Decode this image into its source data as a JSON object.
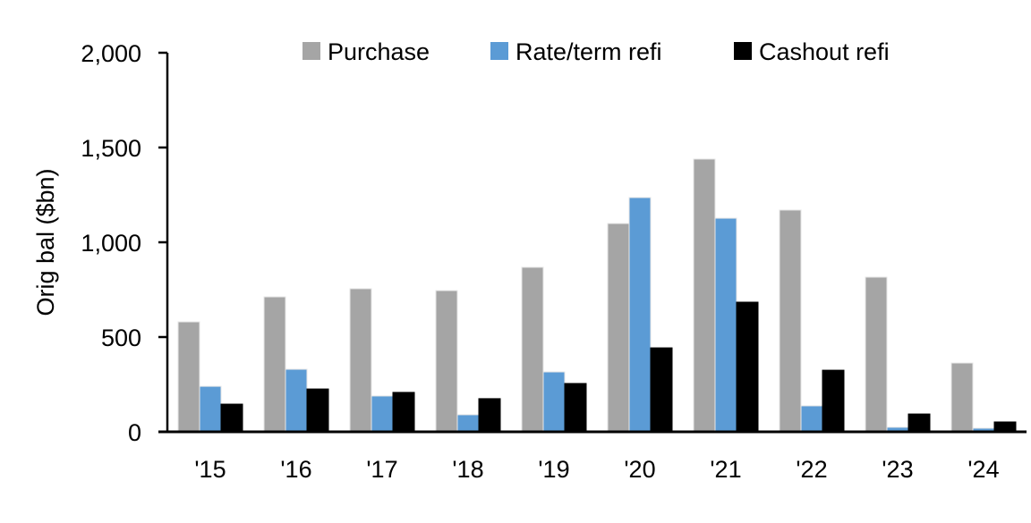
{
  "chart_data": {
    "type": "bar",
    "title": "",
    "xlabel": "",
    "ylabel": "Orig bal ($bn)",
    "ylim": [
      0,
      2000
    ],
    "yticks": [
      0,
      500,
      1000,
      1500,
      2000
    ],
    "ytick_labels": [
      "0",
      "500",
      "1,000",
      "1,500",
      "2,000"
    ],
    "grid": false,
    "legend_position": "top",
    "categories": [
      "'15",
      "'16",
      "'17",
      "'18",
      "'19",
      "'20",
      "'21",
      "'22",
      "'23",
      "'24"
    ],
    "series": [
      {
        "name": "Purchase",
        "color": "#a5a5a5",
        "values": [
          580,
          712,
          755,
          745,
          868,
          1099,
          1439,
          1170,
          816,
          363
        ]
      },
      {
        "name": "Rate/term refi",
        "color": "#5b9bd5",
        "values": [
          240,
          330,
          189,
          90,
          316,
          1236,
          1127,
          137,
          24,
          19
        ]
      },
      {
        "name": "Cashout refi",
        "color": "#000000",
        "values": [
          146,
          226,
          208,
          175,
          255,
          443,
          684,
          325,
          94,
          52
        ]
      }
    ]
  }
}
